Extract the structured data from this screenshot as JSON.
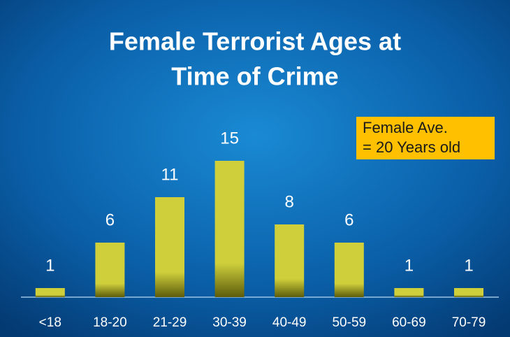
{
  "chart_data": {
    "type": "bar",
    "title": [
      "Female Terrorist Ages at",
      "Time of Crime"
    ],
    "annotation": [
      "Female Ave.",
      "= 20 Years old"
    ],
    "categories": [
      "<18",
      "18-20",
      "21-29",
      "30-39",
      "40-49",
      "50-59",
      "60-69",
      "70-79"
    ],
    "values": [
      1,
      6,
      11,
      15,
      8,
      6,
      1,
      1
    ],
    "color": "#cfcf3c"
  }
}
